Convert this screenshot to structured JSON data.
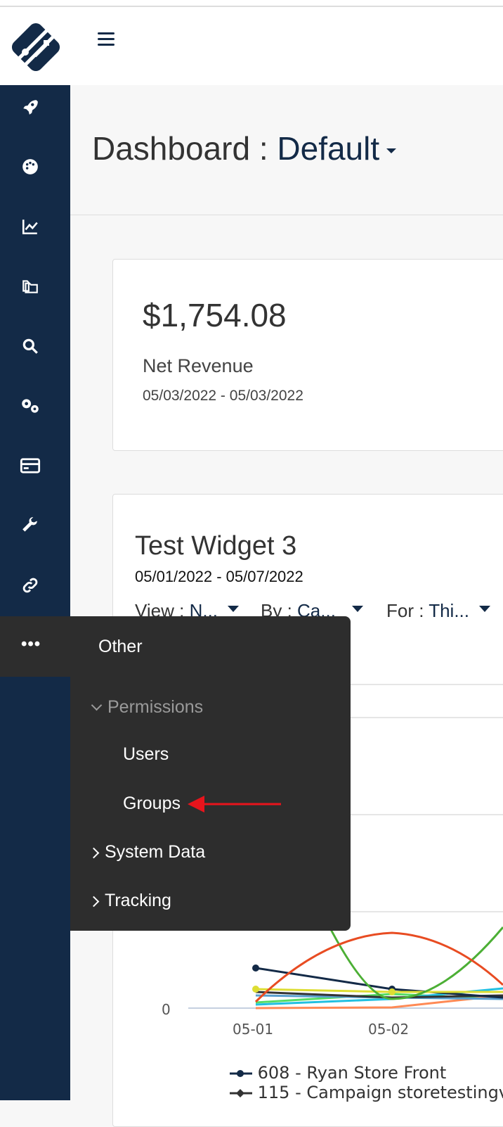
{
  "header": {
    "menu_icon": "hamburger-icon",
    "logo": "brand-logo"
  },
  "sidebar": {
    "icons": [
      "rocket-icon",
      "palette-icon",
      "chart-line-icon",
      "folders-icon",
      "search-icon",
      "cogs-icon",
      "credit-card-icon",
      "wrench-icon",
      "link-icon",
      "more-icon"
    ]
  },
  "page": {
    "title_prefix": "Dashboard :",
    "title_value": "Default"
  },
  "revenue_card": {
    "value": "$1,754.08",
    "label": "Net Revenue",
    "date_range": "05/03/2022 - 05/03/2022"
  },
  "widget": {
    "title": "Test Widget 3",
    "date_range": "05/01/2022 - 05/07/2022",
    "filters": [
      {
        "label": "View :",
        "value": "N..."
      },
      {
        "label": "By :",
        "value": "Ca..."
      },
      {
        "label": "For :",
        "value": "Thi..."
      }
    ]
  },
  "menu": {
    "more_label": "•••",
    "heading": "Other",
    "items": [
      {
        "label": "Permissions",
        "expanded": true,
        "children": [
          {
            "label": "Users"
          },
          {
            "label": "Groups"
          }
        ]
      },
      {
        "label": "System Data",
        "expanded": false
      },
      {
        "label": "Tracking",
        "expanded": false
      }
    ]
  },
  "annotation": {
    "arrow_color": "#e8141c",
    "target": "Groups"
  },
  "chart_data": {
    "type": "line",
    "categories": [
      "05-01",
      "05-02"
    ],
    "y_ticks": [
      "0"
    ],
    "legend": [
      "608 - Ryan Store Front",
      "115 - Campaign storetestingv"
    ],
    "colors": [
      "#132a47",
      "#333333",
      "#e84c22",
      "#4caf35",
      "#dddd33",
      "#5aa0d0",
      "#22c0e0",
      "#55dd66",
      "#ff8a55"
    ]
  },
  "colors": {
    "sidebar": "#132a47",
    "menu": "#2d2d2d",
    "accent": "#132a47"
  }
}
